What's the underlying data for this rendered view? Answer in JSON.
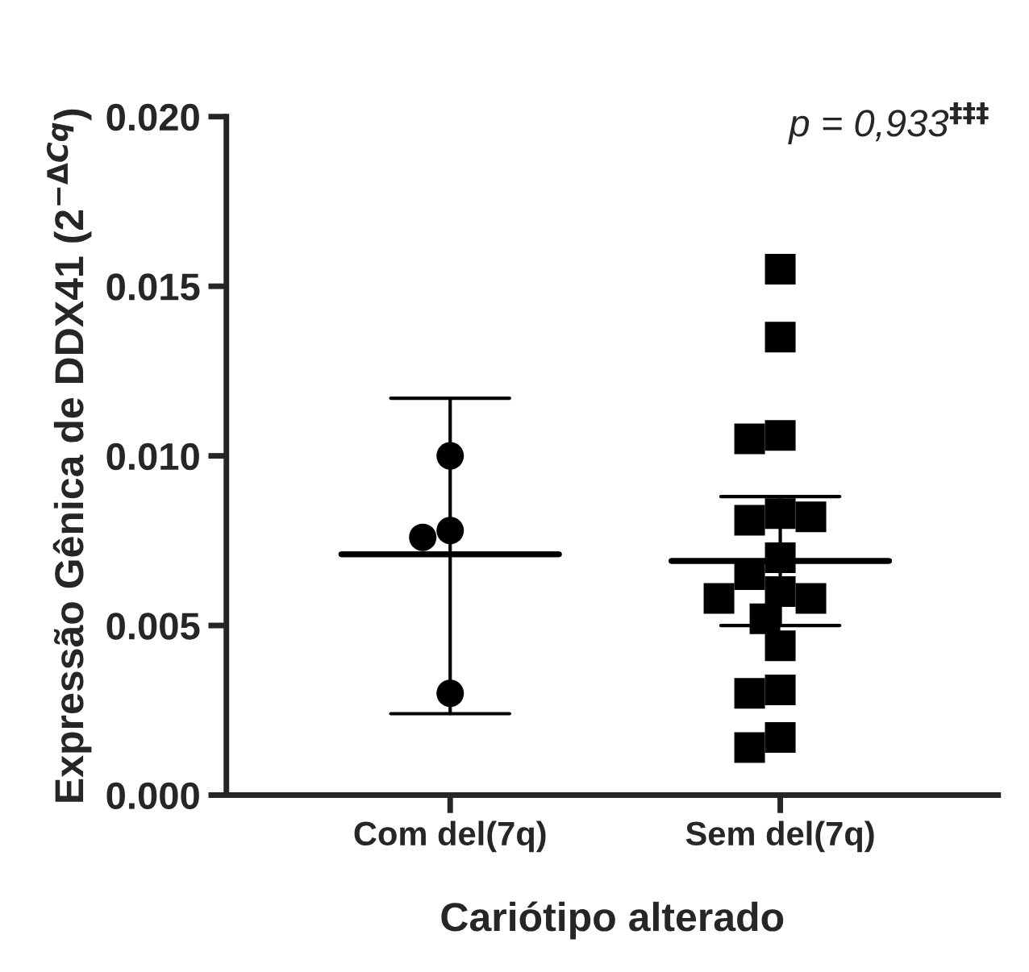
{
  "chart_data": {
    "type": "scatter",
    "categories": [
      "Com del(7q)",
      "Sem del(7q)"
    ],
    "xlabel": "Cariótipo alterado",
    "ylabel": "Expressão Gênica de DDX41 (2$^{−ΔCq}$)",
    "annotations": [
      "p = 0,933$^{‡‡‡}$"
    ],
    "ylim": [
      0,
      0.02
    ],
    "yticks": [
      {
        "value": 0,
        "label": "0.000"
      },
      {
        "value": 0.005,
        "label": "0.005"
      },
      {
        "value": 0.01,
        "label": "0.010"
      },
      {
        "value": 0.015,
        "label": "0.015"
      },
      {
        "value": 0.02,
        "label": "0.020"
      }
    ],
    "grid": false,
    "legend": false,
    "series": [
      {
        "color": "#000000",
        "marker": "circle",
        "x": [
          "Com del(7q)",
          "Com del(7q)",
          "Com del(7q)",
          "Com del(7q)"
        ],
        "values": [
          0.01,
          0.0078,
          0.0076,
          0.003
        ]
      },
      {
        "color": "#000000",
        "marker": "square",
        "x": [
          "Sem del(7q)",
          "Sem del(7q)",
          "Sem del(7q)",
          "Sem del(7q)",
          "Sem del(7q)",
          "Sem del(7q)",
          "Sem del(7q)",
          "Sem del(7q)",
          "Sem del(7q)",
          "Sem del(7q)",
          "Sem del(7q)",
          "Sem del(7q)",
          "Sem del(7q)",
          "Sem del(7q)",
          "Sem del(7q)",
          "Sem del(7q)",
          "Sem del(7q)",
          "Sem del(7q)"
        ],
        "values": [
          0.0155,
          0.0135,
          0.0106,
          0.0105,
          0.0083,
          0.0081,
          0.0082,
          0.007,
          0.0065,
          0.006,
          0.0058,
          0.0058,
          0.0052,
          0.0044,
          0.0031,
          0.003,
          0.0017,
          0.0014
        ]
      },
      {
        "type": "box",
        "color": "#000000",
        "boxes": [
          {
            "low": 0.0024,
            "q1": 0.0071,
            "median": 0.0071,
            "q3": 0.0071,
            "high": 0.0117
          },
          {
            "low": 0.005,
            "q1": 0.0069,
            "median": 0.0069,
            "q3": 0.0069,
            "high": 0.0088
          }
        ]
      }
    ]
  }
}
